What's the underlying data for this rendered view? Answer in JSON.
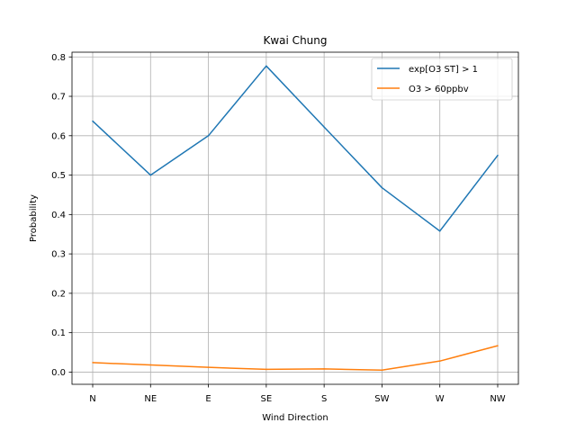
{
  "chart_data": {
    "type": "line",
    "title": "Kwai Chung",
    "xlabel": "Wind Direction",
    "ylabel": "Probability",
    "categories": [
      "N",
      "NE",
      "E",
      "SE",
      "S",
      "SW",
      "W",
      "NW"
    ],
    "ylim": [
      -0.031,
      0.812
    ],
    "yticks": [
      0.0,
      0.1,
      0.2,
      0.3,
      0.4,
      0.5,
      0.6,
      0.7,
      0.8
    ],
    "ytick_labels": [
      "0.0",
      "0.1",
      "0.2",
      "0.3",
      "0.4",
      "0.5",
      "0.6",
      "0.7",
      "0.8"
    ],
    "grid": true,
    "legend_position": "top-right",
    "series": [
      {
        "name": "exp[O3 ST] > 1",
        "color": "#1f77b4",
        "values": [
          0.637,
          0.5,
          0.6,
          0.777,
          0.622,
          0.468,
          0.358,
          0.55
        ]
      },
      {
        "name": "O3 > 60ppbv",
        "color": "#ff7f0e",
        "values": [
          0.024,
          0.018,
          0.012,
          0.007,
          0.008,
          0.005,
          0.028,
          0.067
        ]
      }
    ]
  }
}
